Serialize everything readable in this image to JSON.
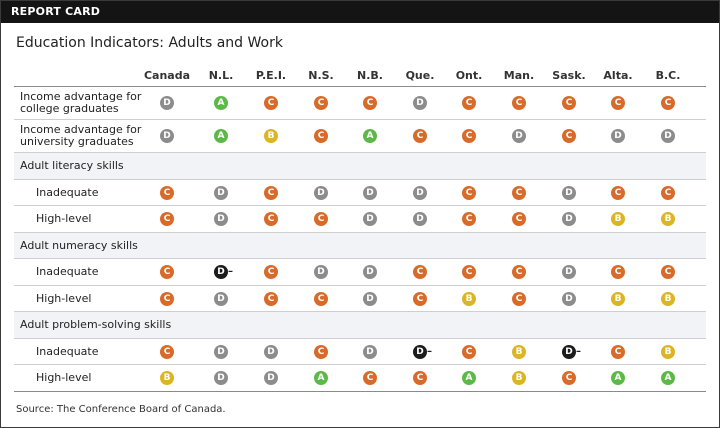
{
  "header": {
    "label": "REPORT CARD"
  },
  "title": "Education Indicators: Adults and Work",
  "columns": [
    "Canada",
    "N.L.",
    "P.E.I.",
    "N.S.",
    "N.B.",
    "Que.",
    "Ont.",
    "Man.",
    "Sask.",
    "Alta.",
    "B.C."
  ],
  "colors": {
    "A": "#5cb947",
    "B": "#dcb526",
    "C": "#d86a2a",
    "D": "#8c8c8c",
    "D-": "#1c1c1c"
  },
  "rows": [
    {
      "type": "tall",
      "label": "Income advantage for\ncollege graduates",
      "grades": [
        "D",
        "A",
        "C",
        "C",
        "C",
        "D",
        "C",
        "C",
        "C",
        "C",
        "C"
      ]
    },
    {
      "type": "tall",
      "label": "Income advantage for\nuniversity graduates",
      "grades": [
        "D",
        "A",
        "B",
        "C",
        "A",
        "C",
        "C",
        "D",
        "C",
        "D",
        "D"
      ]
    },
    {
      "type": "section",
      "label": "Adult literacy skills"
    },
    {
      "type": "sub",
      "label": "Inadequate",
      "grades": [
        "C",
        "D",
        "C",
        "D",
        "D",
        "D",
        "C",
        "C",
        "D",
        "C",
        "C"
      ]
    },
    {
      "type": "sub",
      "label": "High-level",
      "grades": [
        "C",
        "D",
        "C",
        "C",
        "D",
        "D",
        "C",
        "C",
        "D",
        "B",
        "B"
      ]
    },
    {
      "type": "section",
      "label": "Adult numeracy skills"
    },
    {
      "type": "sub",
      "label": "Inadequate",
      "grades": [
        "C",
        "D-",
        "C",
        "D",
        "D",
        "C",
        "C",
        "C",
        "D",
        "C",
        "C"
      ]
    },
    {
      "type": "sub",
      "label": "High-level",
      "grades": [
        "C",
        "D",
        "C",
        "C",
        "D",
        "C",
        "B",
        "C",
        "D",
        "B",
        "B"
      ]
    },
    {
      "type": "section",
      "label": "Adult problem-solving skills"
    },
    {
      "type": "sub",
      "label": "Inadequate",
      "grades": [
        "C",
        "D",
        "D",
        "C",
        "D",
        "D-",
        "C",
        "B",
        "D-",
        "C",
        "B"
      ]
    },
    {
      "type": "sub",
      "label": "High-level",
      "grades": [
        "B",
        "D",
        "D",
        "A",
        "C",
        "C",
        "A",
        "B",
        "C",
        "A",
        "A"
      ]
    }
  ],
  "source": "Source: The Conference Board of Canada."
}
